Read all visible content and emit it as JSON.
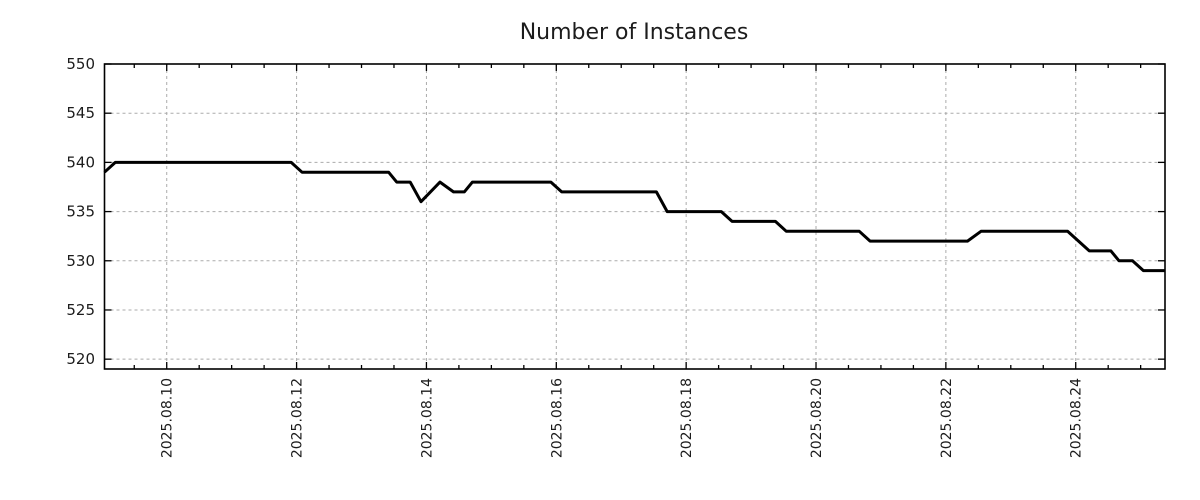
{
  "page": {
    "background": "#ffffff"
  },
  "chart_data": {
    "type": "line",
    "title": "Number of Instances",
    "grid": true,
    "legend": false,
    "line_color": "#000000",
    "line_width": 3,
    "grid_color": "#ababab",
    "axis_color": "#000000",
    "text_color": "#1c1c1c",
    "x_unit": "hours since 2025-08-09 00:00",
    "xlim_hours": [
      1,
      393
    ],
    "x_minor_tick_step_hours": 12,
    "x_major_ticks": [
      {
        "hours": 24,
        "label": "2025.08.10"
      },
      {
        "hours": 72,
        "label": "2025.08.12"
      },
      {
        "hours": 120,
        "label": "2025.08.14"
      },
      {
        "hours": 168,
        "label": "2025.08.16"
      },
      {
        "hours": 216,
        "label": "2025.08.18"
      },
      {
        "hours": 264,
        "label": "2025.08.20"
      },
      {
        "hours": 312,
        "label": "2025.08.22"
      },
      {
        "hours": 360,
        "label": "2025.08.24"
      }
    ],
    "ylim": [
      519,
      550
    ],
    "ylabel": "",
    "xlabel": "",
    "y_ticks": [
      {
        "value": 520,
        "label": "520"
      },
      {
        "value": 525,
        "label": "525"
      },
      {
        "value": 530,
        "label": "530"
      },
      {
        "value": 535,
        "label": "535"
      },
      {
        "value": 540,
        "label": "540"
      },
      {
        "value": 545,
        "label": "545"
      },
      {
        "value": 550,
        "label": "550"
      }
    ],
    "series": [
      {
        "name": "instances",
        "points": [
          [
            1,
            539
          ],
          [
            5,
            540
          ],
          [
            70,
            540
          ],
          [
            74,
            539
          ],
          [
            106,
            539
          ],
          [
            109,
            538
          ],
          [
            114,
            538
          ],
          [
            118,
            536
          ],
          [
            125,
            538
          ],
          [
            130,
            537
          ],
          [
            134,
            537
          ],
          [
            137,
            538
          ],
          [
            166,
            538
          ],
          [
            170,
            537
          ],
          [
            205,
            537
          ],
          [
            209,
            535
          ],
          [
            229,
            535
          ],
          [
            233,
            534
          ],
          [
            249,
            534
          ],
          [
            253,
            533
          ],
          [
            280,
            533
          ],
          [
            284,
            532
          ],
          [
            320,
            532
          ],
          [
            325,
            533
          ],
          [
            357,
            533
          ],
          [
            365,
            531
          ],
          [
            373,
            531
          ],
          [
            376,
            530
          ],
          [
            381,
            530
          ],
          [
            385,
            529
          ],
          [
            393,
            529
          ]
        ]
      }
    ]
  }
}
